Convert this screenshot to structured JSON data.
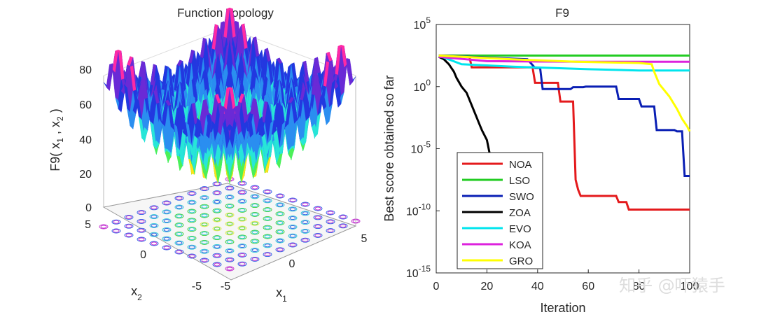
{
  "left_panel": {
    "title": "Function Topology",
    "zlabel": "F9( x",
    "zlabel_sub1": "1",
    "zlabel_mid": " , x",
    "zlabel_sub2": "2",
    "zlabel_end": " )",
    "x1_label": "x",
    "x1_sub": "1",
    "x2_label": "x",
    "x2_sub": "2",
    "z_ticks": [
      "0",
      "20",
      "40",
      "60",
      "80"
    ],
    "x2_ticks": [
      "5",
      "0",
      "-5"
    ],
    "x1_ticks": [
      "-5",
      "0",
      "5"
    ]
  },
  "chart_data": {
    "type": "line",
    "title": "F9",
    "xlabel": "Iteration",
    "ylabel": "Best score obtained so far",
    "xlim": [
      0,
      100
    ],
    "ylim_log10": [
      -15,
      5
    ],
    "yscale": "log",
    "x_ticks": [
      "0",
      "20",
      "40",
      "60",
      "80",
      "100"
    ],
    "y_ticks": [
      {
        "base": "10",
        "exp": "5",
        "value": 100000
      },
      {
        "base": "10",
        "exp": "0",
        "value": 1
      },
      {
        "base": "10",
        "exp": "-5",
        "value": 1e-05
      },
      {
        "base": "10",
        "exp": "-10",
        "value": 1e-10
      },
      {
        "base": "10",
        "exp": "-15",
        "value": 1e-15
      }
    ],
    "legend_position": "bottom-left",
    "series": [
      {
        "name": "NOA",
        "color": "#e41a1c",
        "points": [
          [
            1,
            2.5
          ],
          [
            13,
            2.5
          ],
          [
            14,
            1.55
          ],
          [
            38,
            1.55
          ],
          [
            39,
            0.3
          ],
          [
            48,
            0.3
          ],
          [
            49,
            -1.2
          ],
          [
            54,
            -1.2
          ],
          [
            55,
            -7.5
          ],
          [
            56,
            -8.3
          ],
          [
            57,
            -8.8
          ],
          [
            71,
            -8.8
          ],
          [
            72,
            -9.3
          ],
          [
            75,
            -9.3
          ],
          [
            76,
            -9.9
          ],
          [
            100,
            -9.9
          ]
        ]
      },
      {
        "name": "LSO",
        "color": "#22cc22",
        "points": [
          [
            1,
            2.5
          ],
          [
            100,
            2.5
          ]
        ]
      },
      {
        "name": "SWO",
        "color": "#0a1fb4",
        "points": [
          [
            1,
            2.5
          ],
          [
            36,
            2.2
          ],
          [
            39,
            1.5
          ],
          [
            41,
            1.5
          ],
          [
            42,
            -0.2
          ],
          [
            53,
            -0.2
          ],
          [
            54,
            -0.05
          ],
          [
            58,
            -0.05
          ],
          [
            59,
            0
          ],
          [
            71,
            0
          ],
          [
            72,
            -1.0
          ],
          [
            80,
            -1.0
          ],
          [
            81,
            -1.6
          ],
          [
            86,
            -1.6
          ],
          [
            87,
            -3.5
          ],
          [
            94,
            -3.5
          ],
          [
            95,
            -3.6
          ],
          [
            97,
            -3.6
          ],
          [
            98,
            -7.2
          ],
          [
            100,
            -7.2
          ]
        ]
      },
      {
        "name": "ZOA",
        "color": "#000000",
        "points": [
          [
            1,
            2.4
          ],
          [
            3,
            2.2
          ],
          [
            5,
            1.8
          ],
          [
            7,
            1.2
          ],
          [
            8,
            0.7
          ],
          [
            10,
            0
          ],
          [
            12,
            -0.5
          ],
          [
            14,
            -1.5
          ],
          [
            16,
            -2.5
          ],
          [
            17,
            -3.0
          ],
          [
            18,
            -3.5
          ],
          [
            20,
            -4.3
          ],
          [
            21,
            -5.3
          ]
        ]
      },
      {
        "name": "EVO",
        "color": "#00e5ee",
        "points": [
          [
            1,
            2.5
          ],
          [
            10,
            1.8
          ],
          [
            30,
            1.6
          ],
          [
            60,
            1.4
          ],
          [
            80,
            1.3
          ],
          [
            100,
            1.3
          ]
        ]
      },
      {
        "name": "KOA",
        "color": "#dd22dd",
        "points": [
          [
            1,
            2.4
          ],
          [
            20,
            2.05
          ],
          [
            60,
            2.0
          ],
          [
            100,
            2.0
          ]
        ]
      },
      {
        "name": "GRO",
        "color": "#ffff00",
        "points": [
          [
            1,
            2.5
          ],
          [
            30,
            2.2
          ],
          [
            55,
            2.0
          ],
          [
            80,
            1.9
          ],
          [
            85,
            1.8
          ],
          [
            86,
            1.2
          ],
          [
            88,
            0.2
          ],
          [
            92,
            -0.8
          ],
          [
            95,
            -1.8
          ],
          [
            97,
            -2.6
          ],
          [
            99,
            -3.2
          ],
          [
            100,
            -3.6
          ]
        ]
      }
    ]
  },
  "watermark": "知乎 @吓猿手"
}
